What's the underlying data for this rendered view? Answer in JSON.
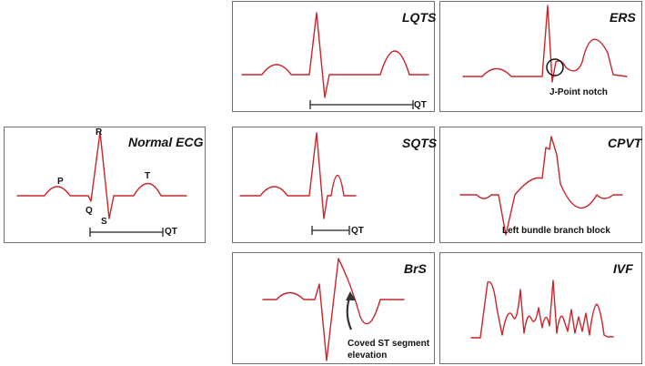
{
  "panels": {
    "normal": {
      "title": "Normal ECG",
      "wave_labels": {
        "p": "P",
        "q": "Q",
        "r": "R",
        "s": "S",
        "t": "T"
      },
      "interval_label": "QT"
    },
    "lqts": {
      "title": "LQTS",
      "interval_label": "QT"
    },
    "ers": {
      "title": "ERS",
      "annotation": "J-Point notch"
    },
    "sqts": {
      "title": "SQTS",
      "interval_label": "QT"
    },
    "cpvt": {
      "title": "CPVT",
      "annotation": "Left bundle branch block"
    },
    "brs": {
      "title": "BrS",
      "annotation_line1": "Coved ST segment",
      "annotation_line2": "elevation"
    },
    "ivf": {
      "title": "IVF"
    }
  },
  "colors": {
    "trace": "#c8262b",
    "border": "#6f6f6f",
    "text": "#111111"
  }
}
